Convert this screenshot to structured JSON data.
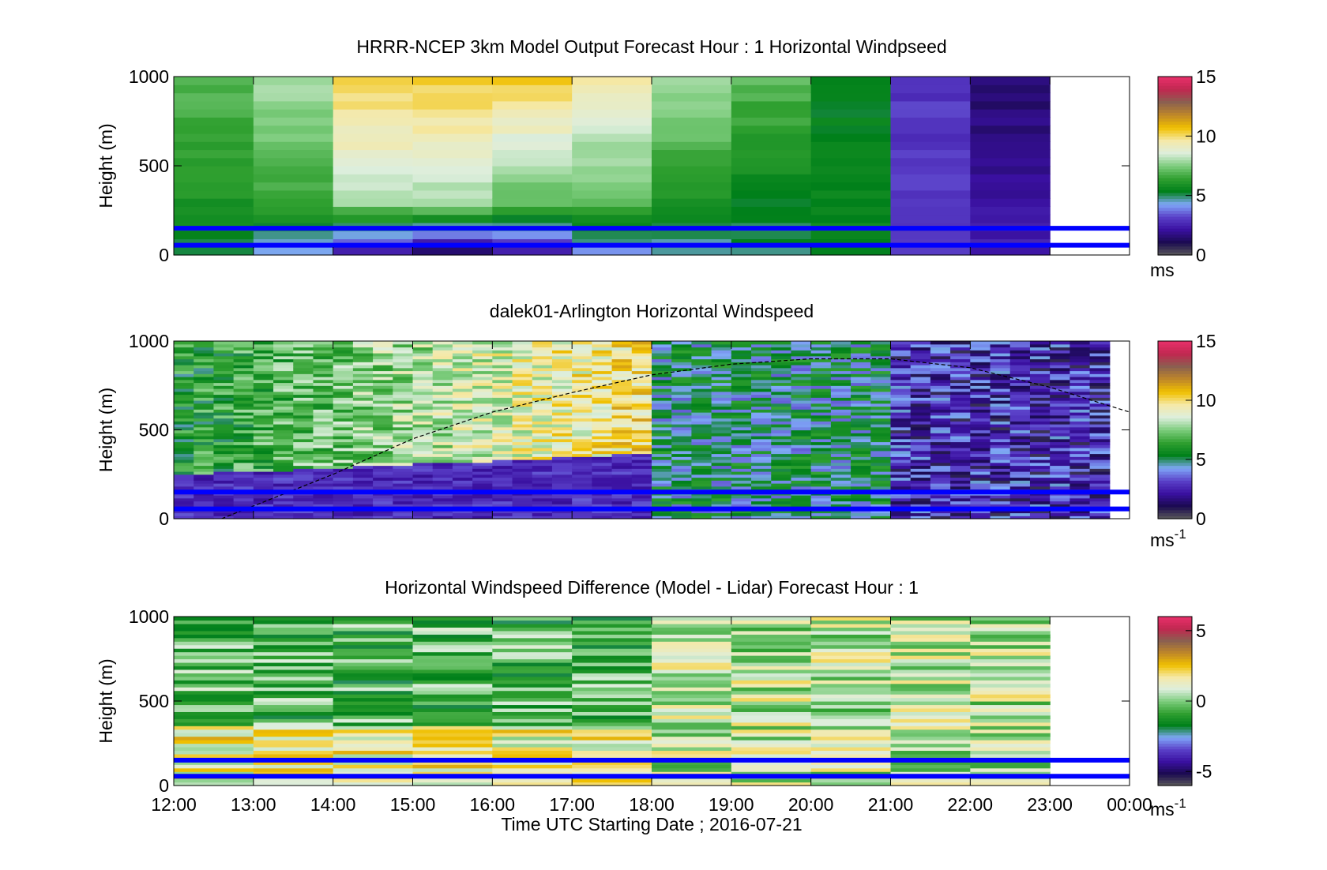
{
  "figure": {
    "xlabel": "Time UTC  Starting Date ; 2016-07-21",
    "xticks": [
      "12:00",
      "13:00",
      "14:00",
      "15:00",
      "16:00",
      "17:00",
      "18:00",
      "19:00",
      "20:00",
      "21:00",
      "22:00",
      "23:00",
      "00:00"
    ]
  },
  "colors": {
    "overlay_line": "#0000ff",
    "colormap": [
      "#5a5a5a",
      "#1a0a50",
      "#3a10a0",
      "#5a40c8",
      "#80a8f8",
      "#00801a",
      "#30a030",
      "#7ccc7c",
      "#ddeedd",
      "#f5e9a8",
      "#f0c000",
      "#c08828",
      "#8a6050",
      "#c02850",
      "#e8306a"
    ]
  },
  "chart_data": [
    {
      "type": "heatmap",
      "title": "HRRR-NCEP 3km Model Output   Forecast Hour : 1 Horizontal Windpseed",
      "ylabel": "Height (m)",
      "ylim": [
        0,
        1000
      ],
      "yticks": [
        "0",
        "500",
        "1000"
      ],
      "x_hours": [
        "12:00",
        "13:00",
        "14:00",
        "15:00",
        "16:00",
        "17:00",
        "18:00",
        "19:00",
        "20:00",
        "21:00",
        "22:00",
        "23:00",
        "00:00"
      ],
      "colorbar": {
        "clim": [
          0,
          15
        ],
        "ticks": [
          "0",
          "5",
          "10",
          "15"
        ],
        "label": "ms",
        "label_sup": ""
      },
      "overlay_lines_height_m": [
        150,
        55
      ],
      "approx_speed_ms_by_hour": [
        {
          "hour": "12:00",
          "low": 5,
          "mid": 6,
          "top": 7
        },
        {
          "hour": "13:00",
          "low": 4,
          "mid": 6.5,
          "top": 8
        },
        {
          "hour": "14:00",
          "low": 2,
          "mid": 8,
          "top": 10.5
        },
        {
          "hour": "15:00",
          "low": 1,
          "mid": 8,
          "top": 10.5
        },
        {
          "hour": "16:00",
          "low": 2,
          "mid": 7,
          "top": 10.5
        },
        {
          "hour": "17:00",
          "low": 4,
          "mid": 7,
          "top": 9.5
        },
        {
          "hour": "18:00",
          "low": 4.5,
          "mid": 6,
          "top": 8
        },
        {
          "hour": "19:00",
          "low": 5,
          "mid": 5.5,
          "top": 7
        },
        {
          "hour": "20:00",
          "low": 5.5,
          "mid": 5.5,
          "top": 5.5
        },
        {
          "hour": "21:00",
          "low": 3,
          "mid": 3,
          "top": 3
        },
        {
          "hour": "22:00",
          "low": 2.5,
          "mid": 2,
          "top": 1.5
        }
      ]
    },
    {
      "type": "heatmap",
      "title": "dalek01-Arlington  Horizontal Windspeed",
      "ylabel": "Height (m)",
      "ylim": [
        0,
        1000
      ],
      "yticks": [
        "0",
        "500",
        "1000"
      ],
      "x_hours": [
        "12:00",
        "13:00",
        "14:00",
        "15:00",
        "16:00",
        "17:00",
        "18:00",
        "19:00",
        "20:00",
        "21:00",
        "22:00",
        "23:00",
        "00:00"
      ],
      "colorbar": {
        "clim": [
          0,
          15
        ],
        "ticks": [
          "0",
          "5",
          "10",
          "15"
        ],
        "label": "ms",
        "label_sup": "-1"
      },
      "overlay_lines_height_m": [
        150,
        55
      ],
      "boundary_layer_curve": {
        "hours": [
          12.6,
          14,
          15,
          16,
          17,
          18,
          19,
          20,
          21,
          22,
          23,
          24
        ],
        "height_m": [
          0,
          250,
          450,
          600,
          710,
          810,
          870,
          900,
          900,
          850,
          740,
          600
        ]
      }
    },
    {
      "type": "heatmap",
      "title": "Horizontal Windspeed Difference (Model - Lidar) Forecast Hour : 1",
      "ylabel": "Height (m)",
      "ylim": [
        0,
        1000
      ],
      "yticks": [
        "0",
        "500",
        "1000"
      ],
      "x_hours": [
        "12:00",
        "13:00",
        "14:00",
        "15:00",
        "16:00",
        "17:00",
        "18:00",
        "19:00",
        "20:00",
        "21:00",
        "22:00",
        "23:00",
        "00:00"
      ],
      "colorbar": {
        "clim": [
          -6,
          6
        ],
        "ticks": [
          "-5",
          "0",
          "5"
        ],
        "label": "ms",
        "label_sup": "-1"
      },
      "overlay_lines_height_m": [
        150,
        55
      ]
    }
  ]
}
